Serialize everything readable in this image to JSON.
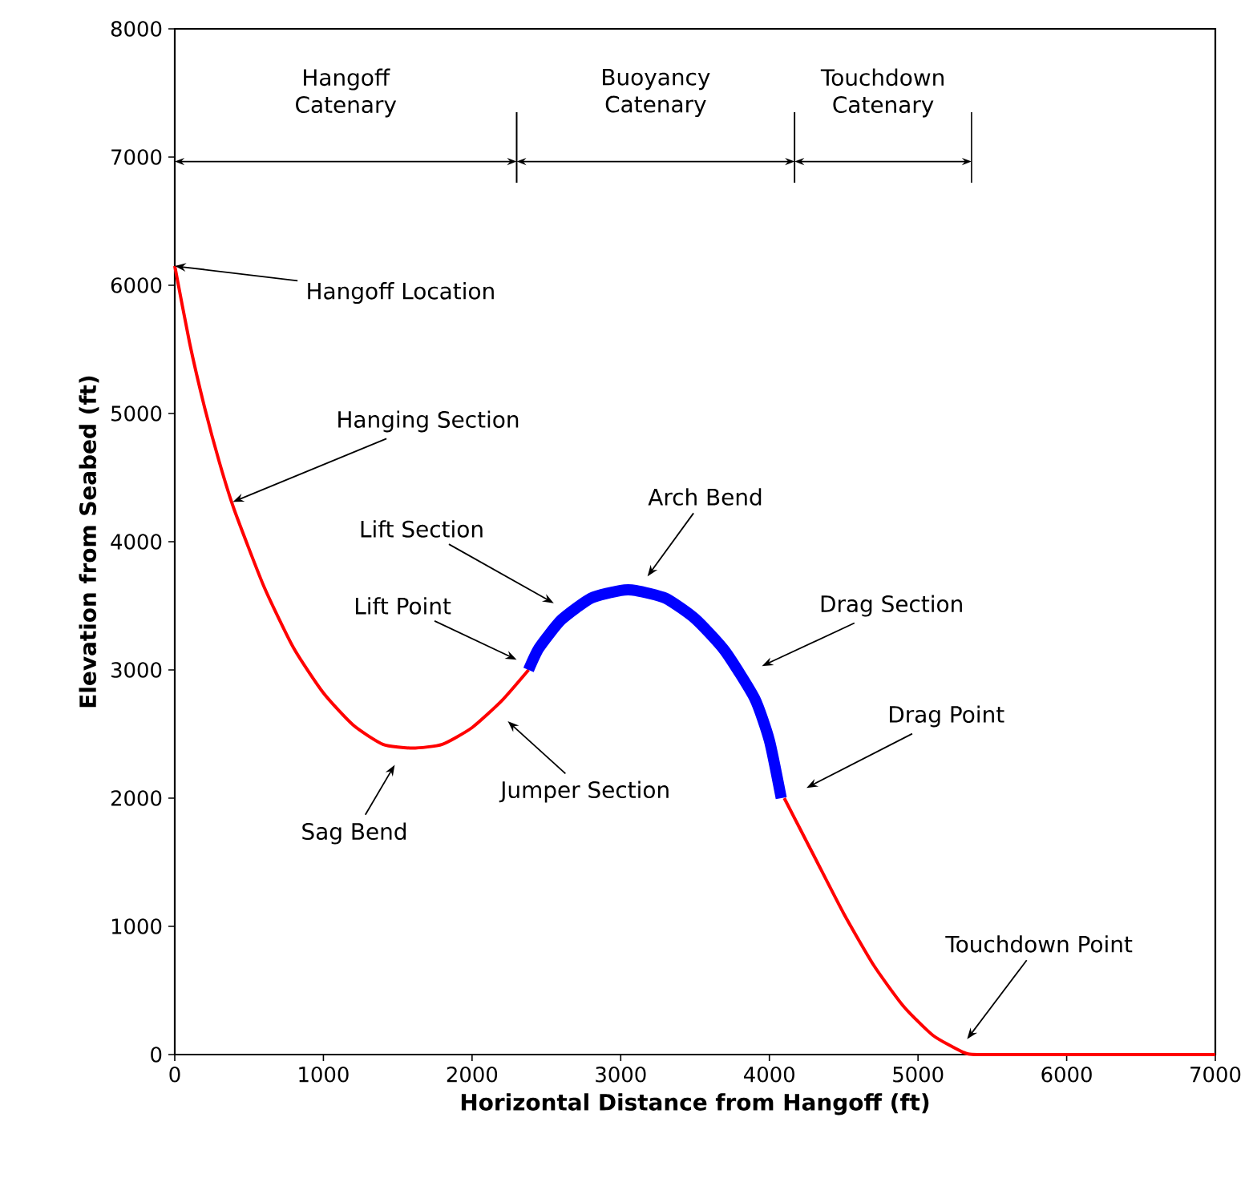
{
  "chart_data": {
    "type": "line",
    "xlabel": "Horizontal Distance from Hangoff (ft)",
    "ylabel": "Elevation from Seabed (ft)",
    "xlim": [
      0,
      7000
    ],
    "ylim": [
      0,
      8000
    ],
    "xticks": [
      0,
      1000,
      2000,
      3000,
      4000,
      5000,
      6000,
      7000
    ],
    "yticks": [
      0,
      1000,
      2000,
      3000,
      4000,
      5000,
      6000,
      7000,
      8000
    ],
    "grid": false,
    "marker": "none",
    "line_style": "solid",
    "series": [
      {
        "color": "#ff0000",
        "x": [
          0,
          100,
          200,
          300,
          400,
          600,
          800,
          1000,
          1200,
          1400,
          1600,
          1800,
          2000,
          2200,
          2380,
          2400,
          4080,
          4100,
          4300,
          4500,
          4700,
          4900,
          5100,
          5300,
          5400,
          6000,
          7000
        ],
        "values": [
          6150,
          5550,
          5050,
          4620,
          4250,
          3650,
          3170,
          2820,
          2570,
          2420,
          2390,
          2420,
          2550,
          2760,
          3000,
          null,
          null,
          2000,
          1550,
          1100,
          700,
          380,
          150,
          20,
          0,
          0,
          0
        ]
      },
      {
        "color": "#0000ff",
        "x": [
          2380,
          2450,
          2600,
          2800,
          3000,
          3100,
          3300,
          3500,
          3700,
          3900,
          4000,
          4080
        ],
        "values": [
          3000,
          3170,
          3390,
          3560,
          3620,
          3620,
          3560,
          3400,
          3150,
          2780,
          2450,
          2000
        ]
      }
    ],
    "annotations": [
      {
        "text": "Hangoff Location",
        "x": 0,
        "y": 6150
      },
      {
        "text": "Hanging Section",
        "x": 390,
        "y": 4310
      },
      "Lift Section",
      "Lift Point",
      "Arch Bend",
      "Drag Section",
      "Drag Point",
      "Jumper Section",
      "Sag Bend",
      "Touchdown Point",
      "Hangoff Catenary",
      "Buoyancy Catenary",
      "Touchdown Catenary"
    ]
  }
}
